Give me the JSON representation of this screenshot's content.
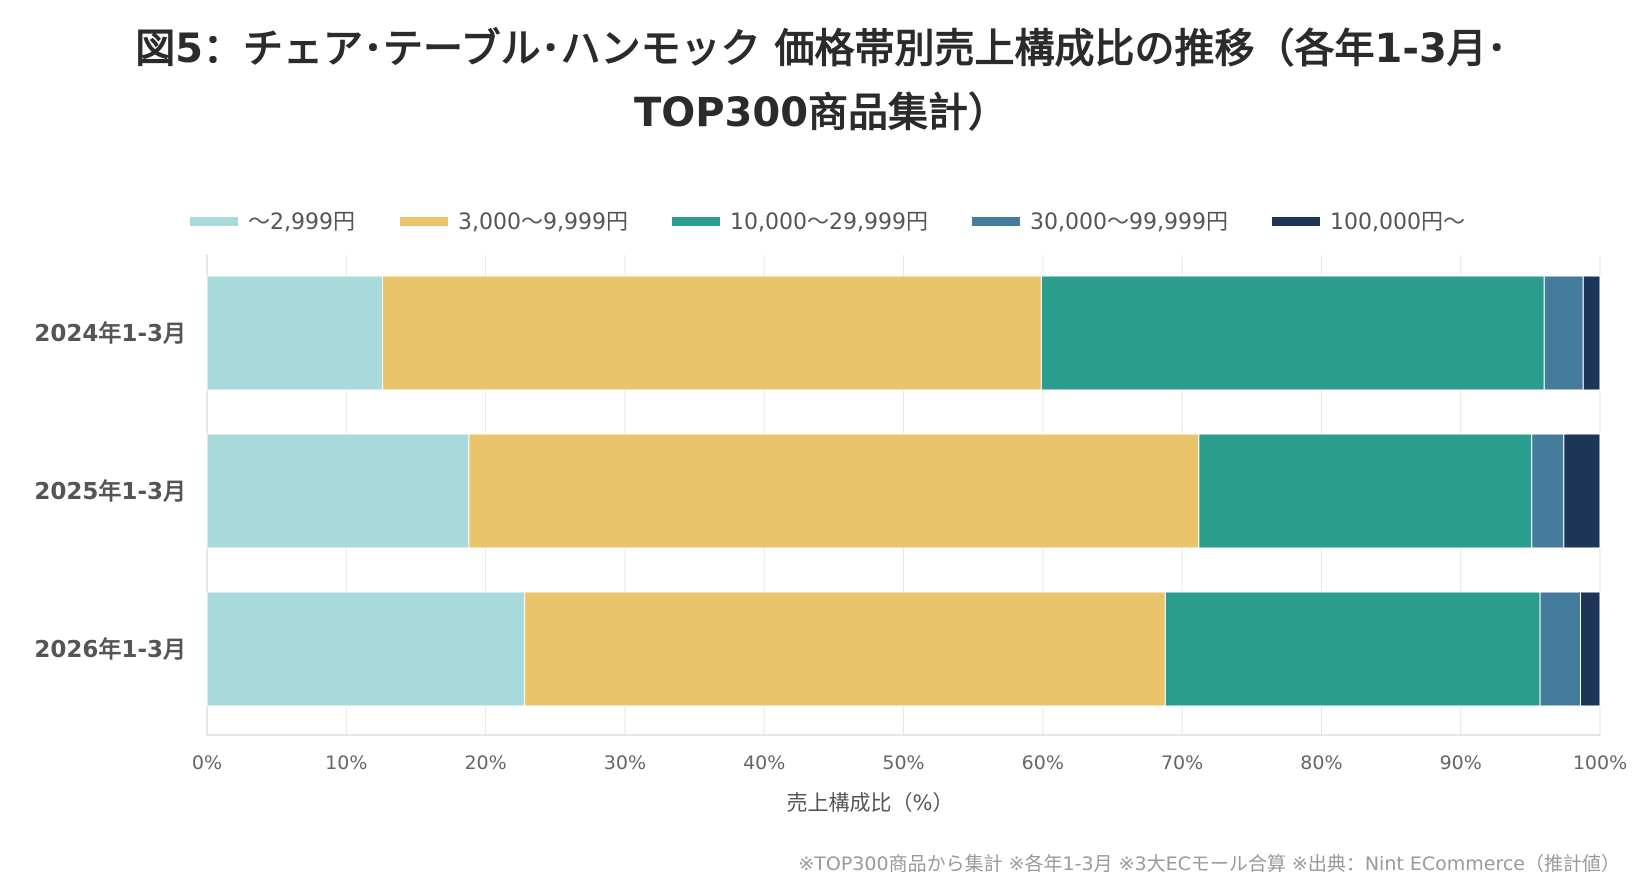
{
  "chart_data": {
    "type": "bar",
    "orientation": "horizontal",
    "stacked": true,
    "title_lines": [
      "図5：チェア･テーブル･ハンモック 価格帯別売上構成比の推移（各年1-3月･",
      "TOP300商品集計）"
    ],
    "categories": [
      "2024年1-3月",
      "2025年1-3月",
      "2026年1-3月"
    ],
    "series": [
      {
        "name": "〜2,999円",
        "color": "#a8dadc",
        "values": [
          12.6,
          18.8,
          22.8
        ]
      },
      {
        "name": "3,000〜9,999円",
        "color": "#e9c46a",
        "values": [
          47.3,
          52.4,
          46.0
        ]
      },
      {
        "name": "10,000〜29,999円",
        "color": "#2a9d8f",
        "values": [
          36.1,
          23.9,
          26.9
        ]
      },
      {
        "name": "30,000〜99,999円",
        "color": "#457b9d",
        "values": [
          2.8,
          2.3,
          2.9
        ]
      },
      {
        "name": "100,000円〜",
        "color": "#1d3557",
        "values": [
          1.2,
          2.6,
          1.4
        ]
      }
    ],
    "xlim": [
      0,
      100
    ],
    "xticks": [
      0,
      10,
      20,
      30,
      40,
      50,
      60,
      70,
      80,
      90,
      100
    ],
    "tick_suffix": "%",
    "xlabel": "売上構成比（%）",
    "legend_position": "top",
    "grid": true,
    "footnote": "※TOP300商品から集計 ※各年1-3月 ※3大ECモール合算 ※出典：Nint ECommerce（推計値）"
  }
}
